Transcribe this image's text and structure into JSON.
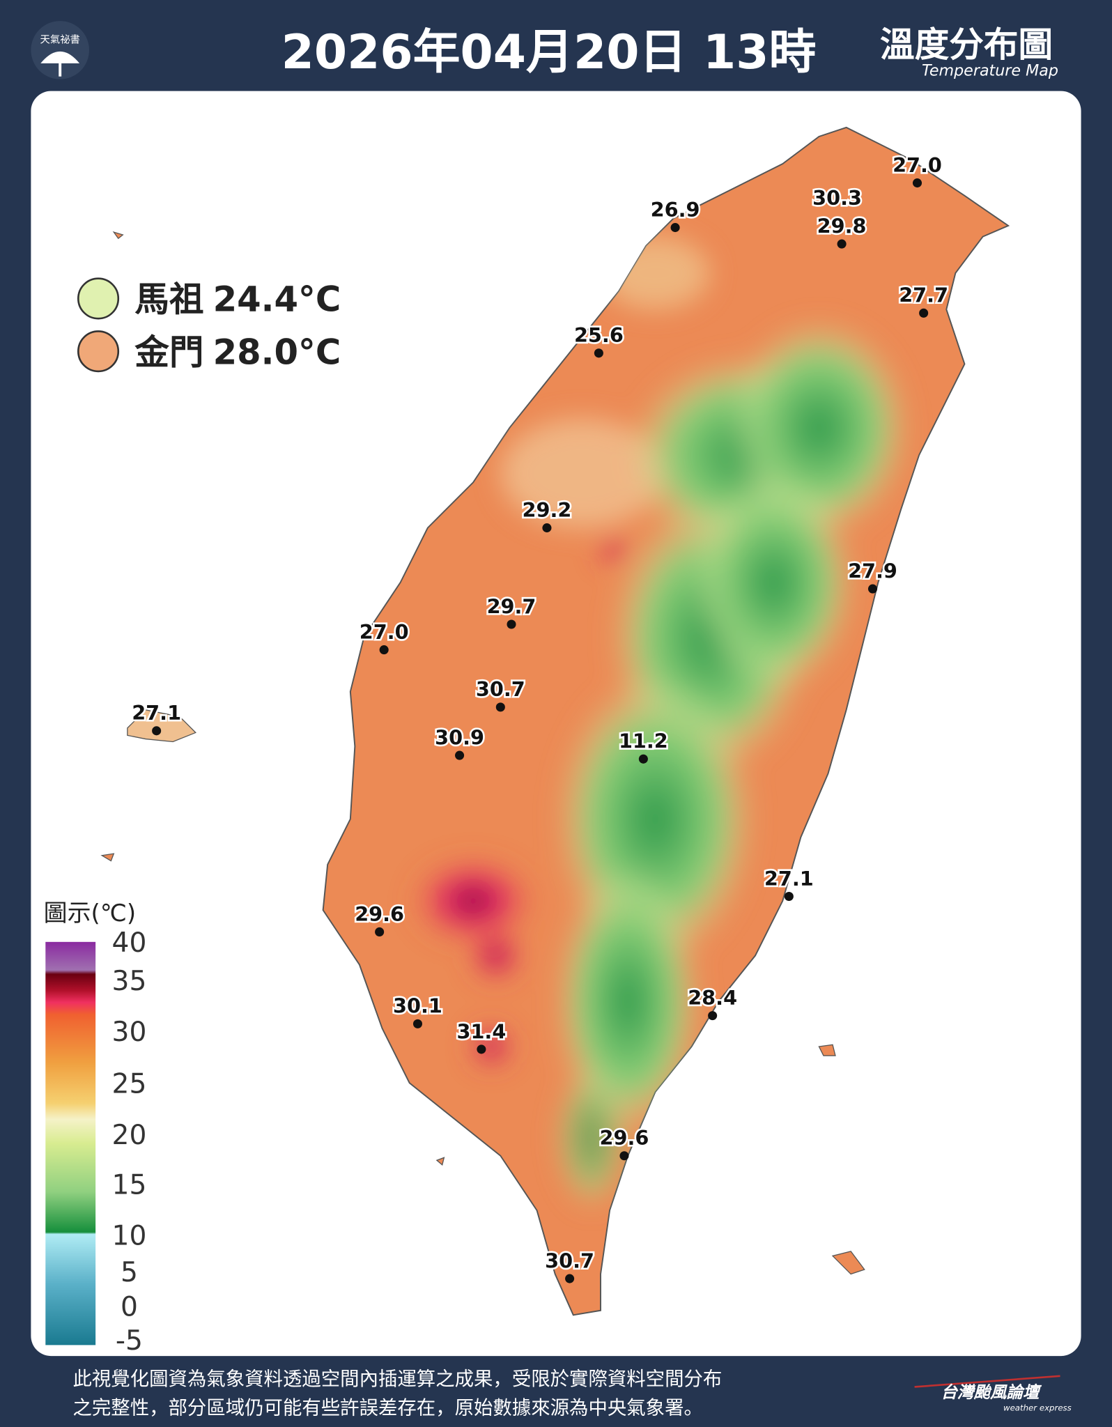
{
  "header": {
    "logo": "天氣祕書",
    "title": "2026年04月20日 13時",
    "map_title": "溫度分布圖",
    "map_subtitle": "Temperature Map"
  },
  "outlying_islands": [
    {
      "name": "馬祖",
      "temperature": "24.4°C"
    },
    {
      "name": "金門",
      "temperature": "28.0°C"
    }
  ],
  "stations": [
    "27.0",
    "30.3",
    "29.8",
    "26.9",
    "27.7",
    "25.6",
    "29.2",
    "29.7",
    "27.0",
    "30.7",
    "30.9",
    "27.1",
    "11.2",
    "27.9",
    "27.1",
    "29.6",
    "30.1",
    "31.4",
    "28.4",
    "29.6",
    "30.7"
  ],
  "legend": {
    "title": "圖示(℃)",
    "ticks": [
      40,
      35,
      30,
      25,
      20,
      15,
      10,
      5,
      0,
      -5
    ]
  },
  "footer": {
    "note_lines": [
      "此視覺化圖資為氣象資料透過空間內插運算之成果，受限於實際資料空間分布",
      "之完整性，部分區域仍可能有些許誤差存在，原始數據來源為中央氣象署。"
    ],
    "brand": "台灣颱風論壇",
    "brand_subtitle": "weather express"
  }
}
